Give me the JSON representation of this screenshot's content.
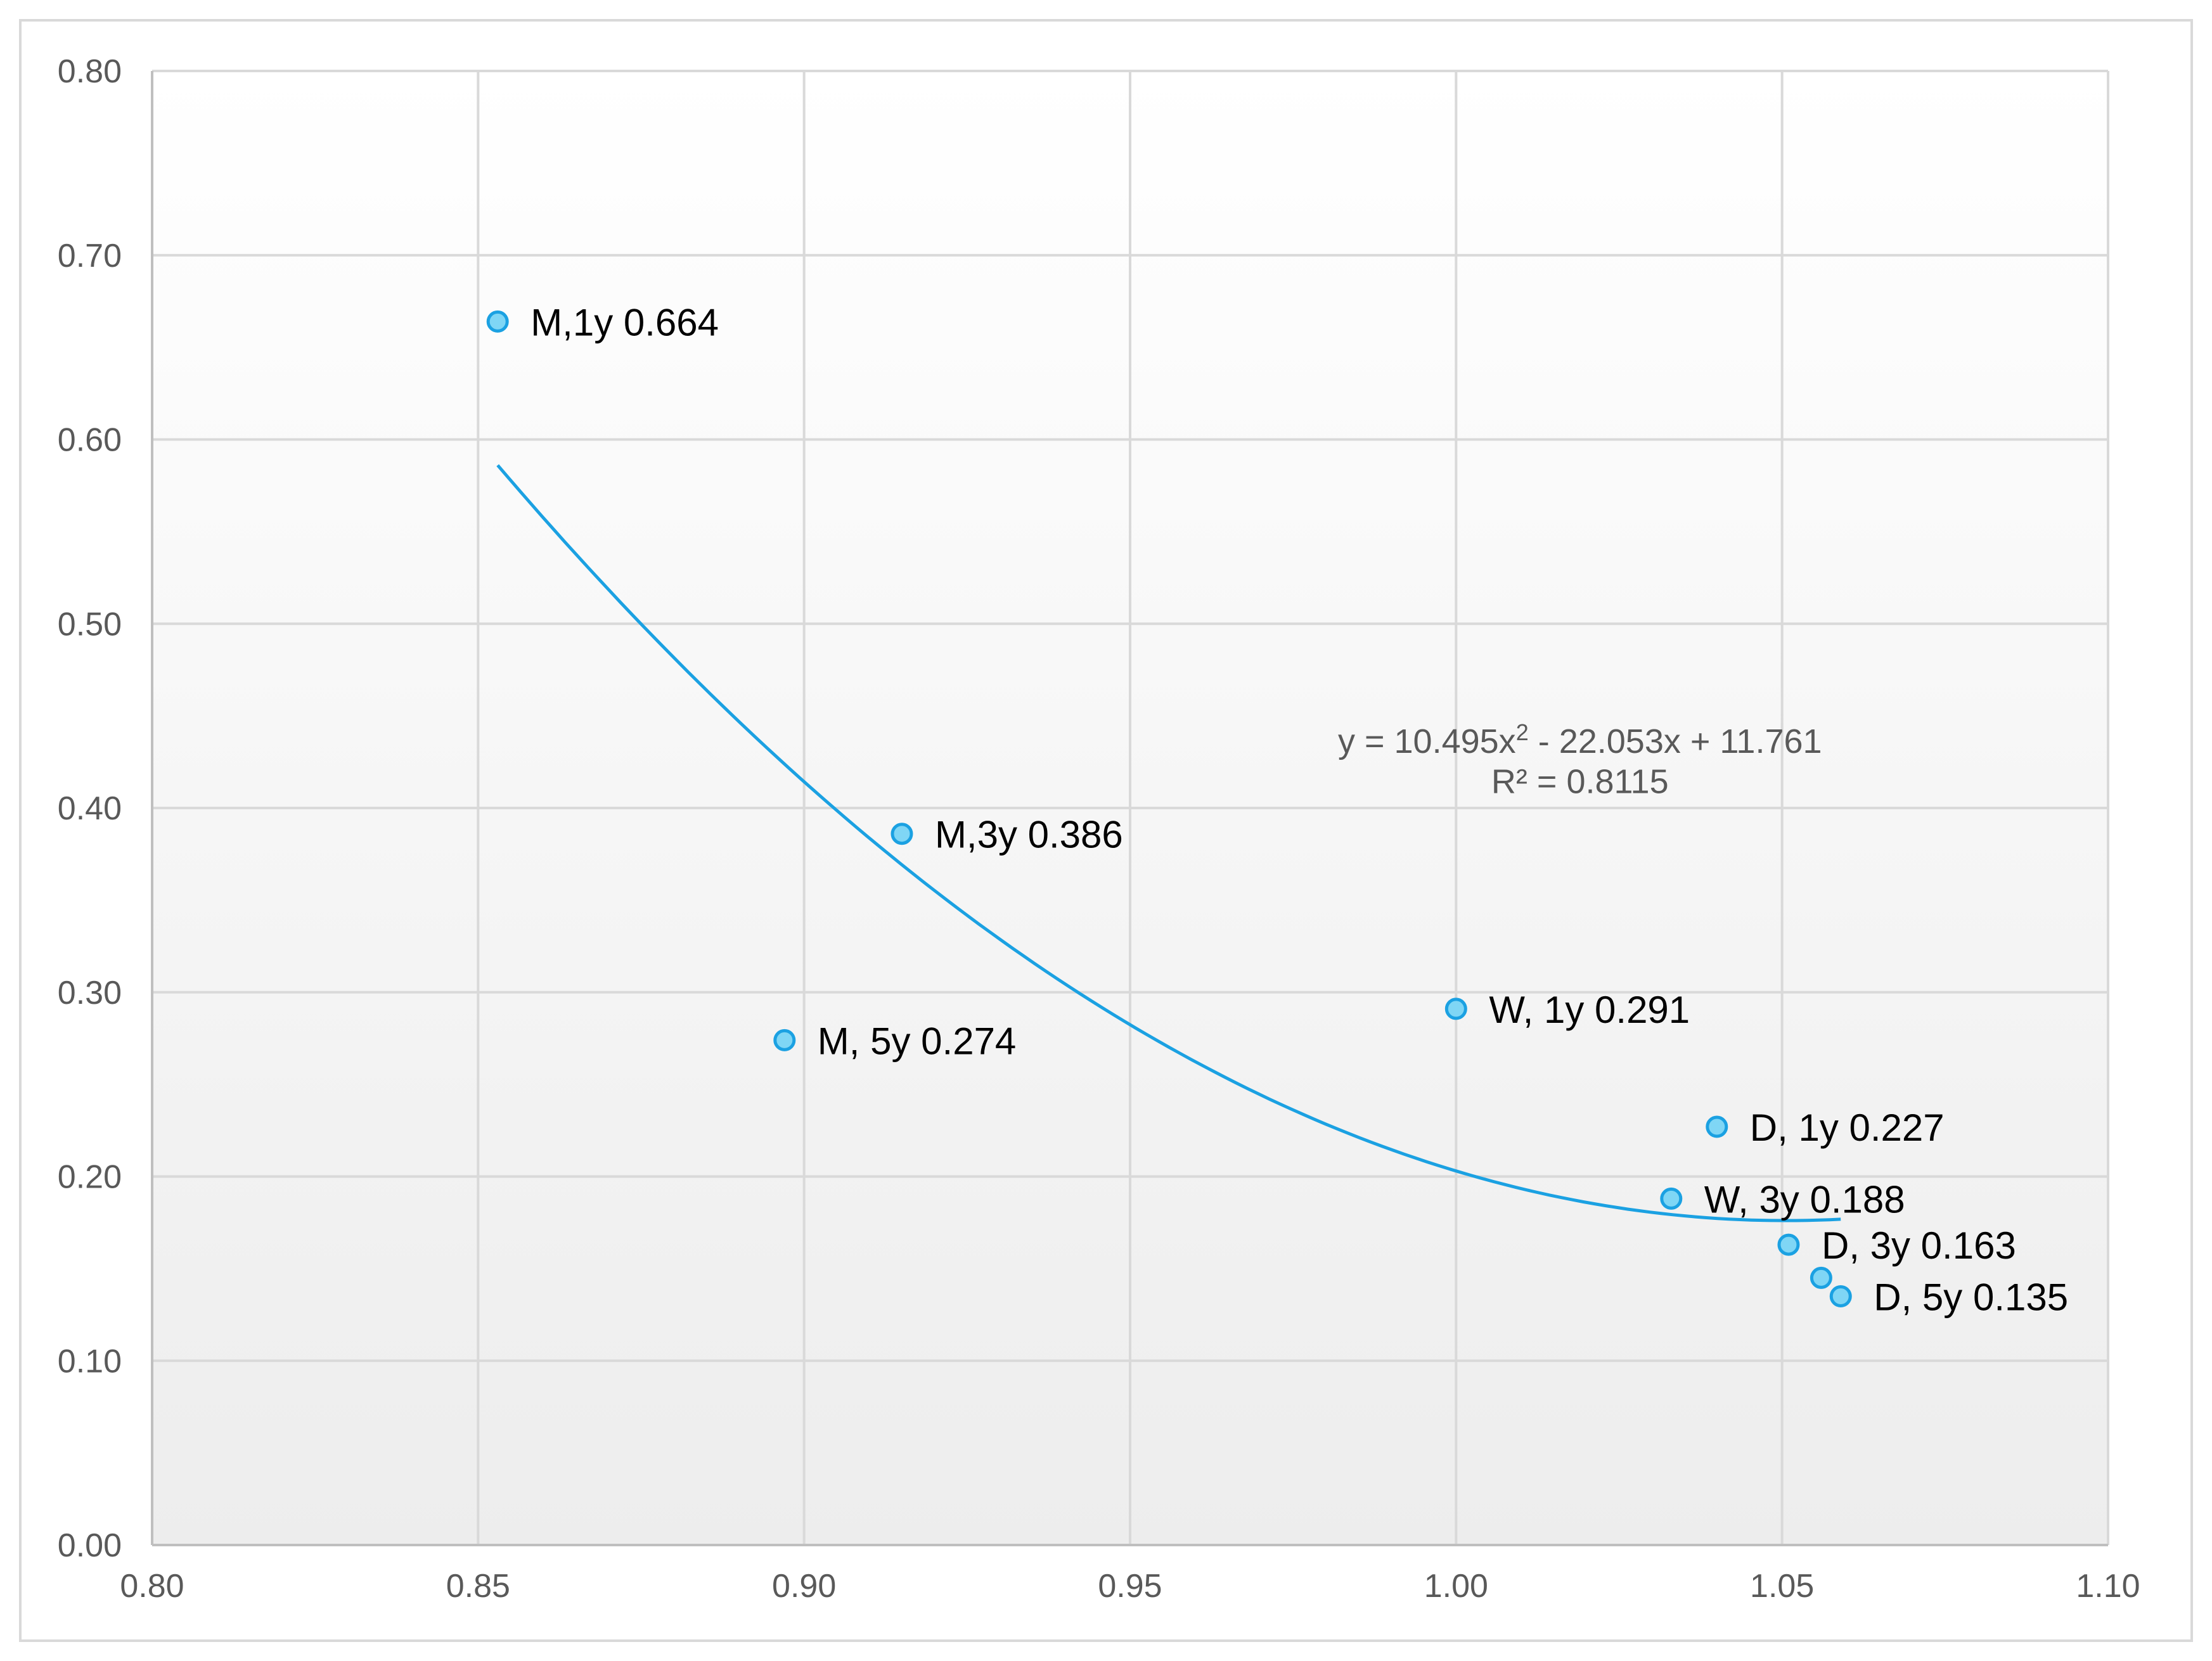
{
  "chart_data": {
    "type": "scatter",
    "title": "",
    "xlabel": "",
    "ylabel": "",
    "xlim": [
      0.8,
      1.1
    ],
    "ylim": [
      0.0,
      0.8
    ],
    "x_ticks": [
      "0.80",
      "0.85",
      "0.90",
      "0.95",
      "1.00",
      "1.05",
      "1.10"
    ],
    "y_ticks": [
      "0.00",
      "0.10",
      "0.20",
      "0.30",
      "0.40",
      "0.50",
      "0.60",
      "0.70",
      "0.80"
    ],
    "grid": true,
    "legend": "none",
    "points": [
      {
        "x": 0.853,
        "y": 0.664,
        "label": "M,1y 0.664"
      },
      {
        "x": 0.915,
        "y": 0.386,
        "label": "M,3y 0.386"
      },
      {
        "x": 0.897,
        "y": 0.274,
        "label": "M, 5y 0.274"
      },
      {
        "x": 1.0,
        "y": 0.291,
        "label": "W, 1y 0.291"
      },
      {
        "x": 1.04,
        "y": 0.227,
        "label": "D, 1y 0.227"
      },
      {
        "x": 1.033,
        "y": 0.188,
        "label": "W, 3y 0.188"
      },
      {
        "x": 1.051,
        "y": 0.163,
        "label": "D, 3y 0.163"
      },
      {
        "x": 1.056,
        "y": 0.145,
        "label": ""
      },
      {
        "x": 1.059,
        "y": 0.135,
        "label": "D, 5y 0.135"
      }
    ],
    "trendline": {
      "type": "polynomial",
      "order": 2,
      "coefficients": [
        10.495,
        -22.053,
        11.761
      ],
      "x_range": [
        0.853,
        1.059
      ],
      "equation_text": "y = 10.495x² - 22.053x + 11.761",
      "r2_text": "R² = 0.8115"
    },
    "colors": {
      "marker_fill": "#7fd6f5",
      "marker_stroke": "#1ba1e2",
      "trendline": "#1ba1e2",
      "grid": "#d9d9d9",
      "plot_bg_top": "#ffffff",
      "plot_bg_bottom": "#ededed"
    }
  }
}
